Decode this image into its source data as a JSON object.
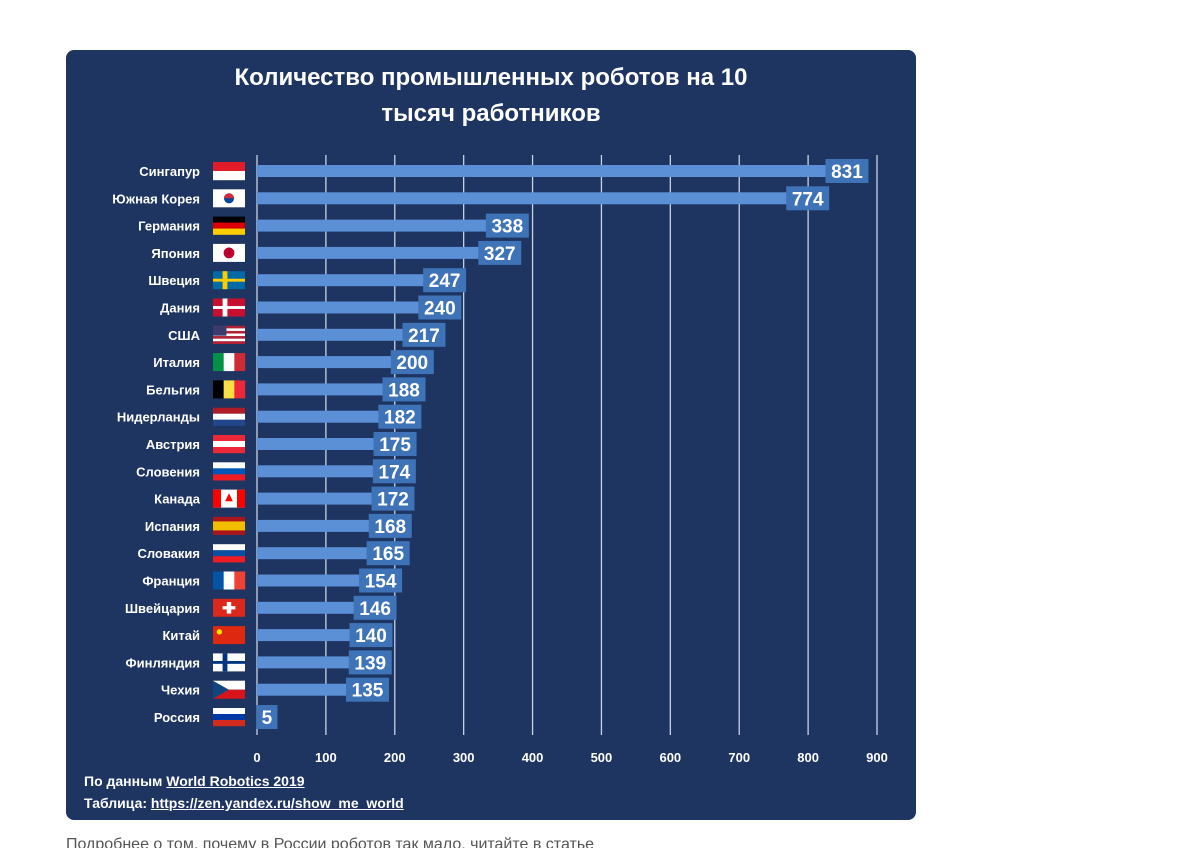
{
  "chart_data": {
    "type": "bar",
    "orientation": "horizontal",
    "title_lines": [
      "Количество промышленных роботов на 10",
      "тысяч работников"
    ],
    "categories": [
      "Сингапур",
      "Южная Корея",
      "Германия",
      "Япония",
      "Швеция",
      "Дания",
      "США",
      "Италия",
      "Бельгия",
      "Нидерланды",
      "Австрия",
      "Словения",
      "Канада",
      "Испания",
      "Словакия",
      "Франция",
      "Швейцария",
      "Китай",
      "Финляндия",
      "Чехия",
      "Россия"
    ],
    "values": [
      831,
      774,
      338,
      327,
      247,
      240,
      217,
      200,
      188,
      182,
      175,
      174,
      172,
      168,
      165,
      154,
      146,
      140,
      139,
      135,
      5
    ],
    "x_ticks": [
      0,
      100,
      200,
      300,
      400,
      500,
      600,
      700,
      800,
      900
    ],
    "xlim": [
      0,
      900
    ],
    "grid": true,
    "flags": [
      {
        "type": "h",
        "colors": [
          "#e21b2b",
          "#ffffff"
        ]
      },
      {
        "type": "kr",
        "colors": [
          "#ffffff",
          "#cd2e3a",
          "#0047a0"
        ]
      },
      {
        "type": "h",
        "colors": [
          "#000000",
          "#dd0000",
          "#ffce00"
        ]
      },
      {
        "type": "jp",
        "colors": [
          "#ffffff",
          "#bc002d"
        ]
      },
      {
        "type": "nordic",
        "colors": [
          "#006aa7",
          "#fecc00"
        ]
      },
      {
        "type": "nordic",
        "colors": [
          "#c8102e",
          "#ffffff"
        ]
      },
      {
        "type": "us",
        "colors": [
          "#b22234",
          "#ffffff",
          "#3c3b6e"
        ]
      },
      {
        "type": "v",
        "colors": [
          "#009246",
          "#ffffff",
          "#ce2b37"
        ]
      },
      {
        "type": "v",
        "colors": [
          "#000000",
          "#fae042",
          "#ed2939"
        ]
      },
      {
        "type": "h",
        "colors": [
          "#ae1c28",
          "#ffffff",
          "#21468b"
        ]
      },
      {
        "type": "h",
        "colors": [
          "#ed2939",
          "#ffffff",
          "#ed2939"
        ]
      },
      {
        "type": "h",
        "colors": [
          "#ffffff",
          "#0057b8",
          "#ed1c24"
        ]
      },
      {
        "type": "ca",
        "colors": [
          "#ff0000",
          "#ffffff"
        ]
      },
      {
        "type": "es",
        "colors": [
          "#aa151b",
          "#f1bf00"
        ]
      },
      {
        "type": "h",
        "colors": [
          "#ffffff",
          "#0b4ea2",
          "#ee1c25"
        ]
      },
      {
        "type": "v",
        "colors": [
          "#0055a4",
          "#ffffff",
          "#ef4135"
        ]
      },
      {
        "type": "ch",
        "colors": [
          "#da291c",
          "#ffffff"
        ]
      },
      {
        "type": "cn",
        "colors": [
          "#de2910",
          "#ffde00"
        ]
      },
      {
        "type": "nordic",
        "colors": [
          "#ffffff",
          "#003580"
        ]
      },
      {
        "type": "cz",
        "colors": [
          "#ffffff",
          "#d7141a",
          "#11457e"
        ]
      },
      {
        "type": "h",
        "colors": [
          "#ffffff",
          "#0039a6",
          "#d52b1e"
        ]
      }
    ]
  },
  "colors": {
    "background": "#1e3461",
    "bar": "#5b8fd6",
    "label_box": "#3f73b8",
    "grid": "#c7d3e6",
    "text": "#ffffff"
  },
  "footer": {
    "line1_prefix": "По данным ",
    "line1_link": "World Robotics 2019",
    "line2_prefix": "Таблица: ",
    "line2_link": "https://zen.yandex.ru/show_me_world"
  },
  "page_text": "Подробнее о том, почему в России роботов так мало, читайте в статье"
}
